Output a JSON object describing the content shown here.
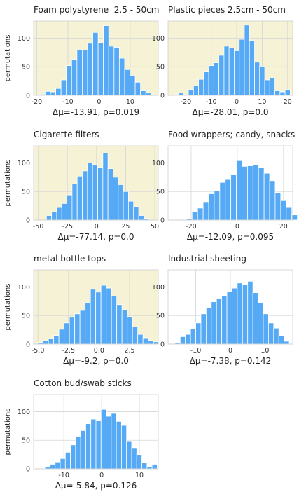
{
  "figure": {
    "colors": {
      "bar": "#56aaf5",
      "bar_edge": "#ffffff",
      "significant_bg": "#f5f2d6",
      "plain_bg": "#ffffff",
      "grid": "#d6d6d6",
      "text": "#333333"
    }
  },
  "chart_data": [
    {
      "type": "bar",
      "title": "Foam polystyrene  2.5 - 50cm",
      "xlabel": "Δμ=-13.91, p=0.019",
      "ylabel": "permutations",
      "highlighted": true,
      "xlim": [
        -21,
        19
      ],
      "ylim": [
        0,
        130
      ],
      "xticks": [
        -20,
        -10,
        0,
        10
      ],
      "yticks": [
        0,
        50,
        100
      ],
      "bins": {
        "start": -19,
        "width": 1.7
      },
      "values": [
        2,
        7,
        6,
        12,
        27,
        52,
        63,
        79,
        79,
        91,
        110,
        92,
        122,
        86,
        84,
        65,
        45,
        35,
        23,
        8,
        4
      ]
    },
    {
      "type": "bar",
      "title": "Plastic pieces 2.5cm - 50cm",
      "xlabel": "Δμ=-28.01, p=0.0",
      "ylabel": "",
      "highlighted": true,
      "xlim": [
        -27,
        22
      ],
      "ylim": [
        0,
        130
      ],
      "xticks": [
        -20,
        -10,
        0,
        10,
        20
      ],
      "yticks": [
        0,
        50,
        100
      ],
      "bins": {
        "start": -25,
        "width": 2.0
      },
      "values": [
        1,
        4,
        1,
        10,
        17,
        28,
        41,
        52,
        57,
        70,
        86,
        83,
        78,
        98,
        123,
        96,
        58,
        51,
        27,
        30,
        8,
        6,
        10
      ]
    },
    {
      "type": "bar",
      "title": "Cigarette filters",
      "xlabel": "Δμ=-77.14, p=0.0",
      "ylabel": "permutations",
      "highlighted": true,
      "xlim": [
        -54,
        53
      ],
      "ylim": [
        0,
        130
      ],
      "xticks": [
        -50,
        -25,
        0,
        25,
        50
      ],
      "yticks": [
        0,
        50,
        100
      ],
      "bins": {
        "start": -43,
        "width": 4.4
      },
      "values": [
        8,
        14,
        22,
        29,
        44,
        63,
        77,
        86,
        100,
        97,
        92,
        117,
        90,
        75,
        62,
        50,
        33,
        23,
        8,
        3
      ]
    },
    {
      "type": "bar",
      "title": "Food wrappers; candy, snacks",
      "xlabel": "Δμ=-12.09, p=0.095",
      "ylabel": "",
      "highlighted": false,
      "xlim": [
        -30,
        24
      ],
      "ylim": [
        0,
        130
      ],
      "xticks": [
        -20,
        0,
        20
      ],
      "yticks": [
        0,
        50,
        100
      ],
      "bins": {
        "start": -22,
        "width": 2.4
      },
      "values": [
        2,
        15,
        21,
        32,
        46,
        51,
        66,
        71,
        80,
        104,
        94,
        95,
        97,
        92,
        82,
        69,
        48,
        34,
        22,
        9
      ]
    },
    {
      "type": "bar",
      "title": "metal bottle tops",
      "xlabel": "Δμ=-9.2, p=0.0",
      "ylabel": "permutations",
      "highlighted": true,
      "xlim": [
        -5.35,
        4.85
      ],
      "ylim": [
        0,
        130
      ],
      "xticks": [
        -5.0,
        -2.5,
        0.0,
        2.5
      ],
      "yticks": [
        0,
        50,
        100
      ],
      "bins": {
        "start": -5.0,
        "width": 0.43
      },
      "values": [
        3,
        6,
        10,
        15,
        26,
        37,
        47,
        53,
        59,
        73,
        96,
        91,
        103,
        98,
        84,
        69,
        60,
        48,
        30,
        17,
        11,
        6,
        4
      ]
    },
    {
      "type": "bar",
      "title": "Industrial sheeting",
      "xlabel": "Δμ=-7.38, p=0.142",
      "ylabel": "",
      "highlighted": false,
      "xlim": [
        -18,
        18
      ],
      "ylim": [
        0,
        130
      ],
      "xticks": [
        -10,
        0,
        10
      ],
      "yticks": [
        0,
        50,
        100
      ],
      "bins": {
        "start": -16,
        "width": 1.5
      },
      "values": [
        3,
        13,
        17,
        27,
        37,
        53,
        63,
        74,
        79,
        85,
        92,
        98,
        107,
        104,
        110,
        90,
        72,
        53,
        37,
        28,
        15,
        5
      ]
    },
    {
      "type": "bar",
      "title": "Cotton bud/swab sticks",
      "xlabel": "Δμ=-5.84, p=0.126",
      "ylabel": "permutations",
      "highlighted": false,
      "xlim": [
        -18,
        15
      ],
      "ylim": [
        0,
        130
      ],
      "xticks": [
        -10,
        0,
        10
      ],
      "yticks": [
        0,
        50,
        100
      ],
      "bins": {
        "start": -15,
        "width": 1.35
      },
      "values": [
        3,
        8,
        12,
        18,
        29,
        42,
        57,
        67,
        79,
        87,
        85,
        104,
        92,
        97,
        83,
        76,
        49,
        37,
        25,
        11,
        3,
        8
      ]
    }
  ]
}
